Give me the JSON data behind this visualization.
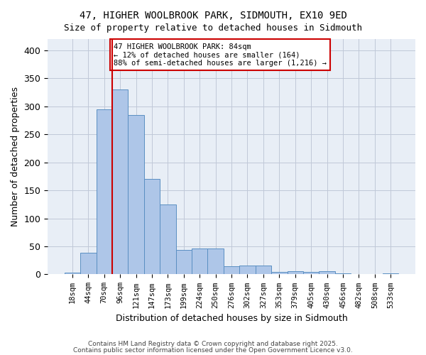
{
  "title_line1": "47, HIGHER WOOLBROOK PARK, SIDMOUTH, EX10 9ED",
  "title_line2": "Size of property relative to detached houses in Sidmouth",
  "xlabel": "Distribution of detached houses by size in Sidmouth",
  "ylabel": "Number of detached properties",
  "bar_values": [
    3,
    39,
    295,
    330,
    284,
    170,
    125,
    44,
    46,
    46,
    15,
    16,
    16,
    4,
    6,
    4,
    6,
    2,
    1,
    1,
    2
  ],
  "bin_labels": [
    "18sqm",
    "44sqm",
    "70sqm",
    "96sqm",
    "121sqm",
    "147sqm",
    "173sqm",
    "199sqm",
    "224sqm",
    "250sqm",
    "276sqm",
    "302sqm",
    "327sqm",
    "353sqm",
    "379sqm",
    "405sqm",
    "430sqm",
    "456sqm",
    "482sqm",
    "508sqm",
    "533sqm"
  ],
  "bar_color": "#aec6e8",
  "bar_edge_color": "#5a8fc2",
  "grid_color": "#c0c8d8",
  "background_color": "#e8eef6",
  "vline_x_index": 2,
  "vline_color": "#cc0000",
  "annotation_text": "47 HIGHER WOOLBROOK PARK: 84sqm\n← 12% of detached houses are smaller (164)\n88% of semi-detached houses are larger (1,216) →",
  "annotation_box_color": "#ffffff",
  "annotation_box_edge": "#cc0000",
  "ylim": [
    0,
    420
  ],
  "yticks": [
    0,
    50,
    100,
    150,
    200,
    250,
    300,
    350,
    400
  ],
  "footer_line1": "Contains HM Land Registry data © Crown copyright and database right 2025.",
  "footer_line2": "Contains public sector information licensed under the Open Government Licence v3.0."
}
